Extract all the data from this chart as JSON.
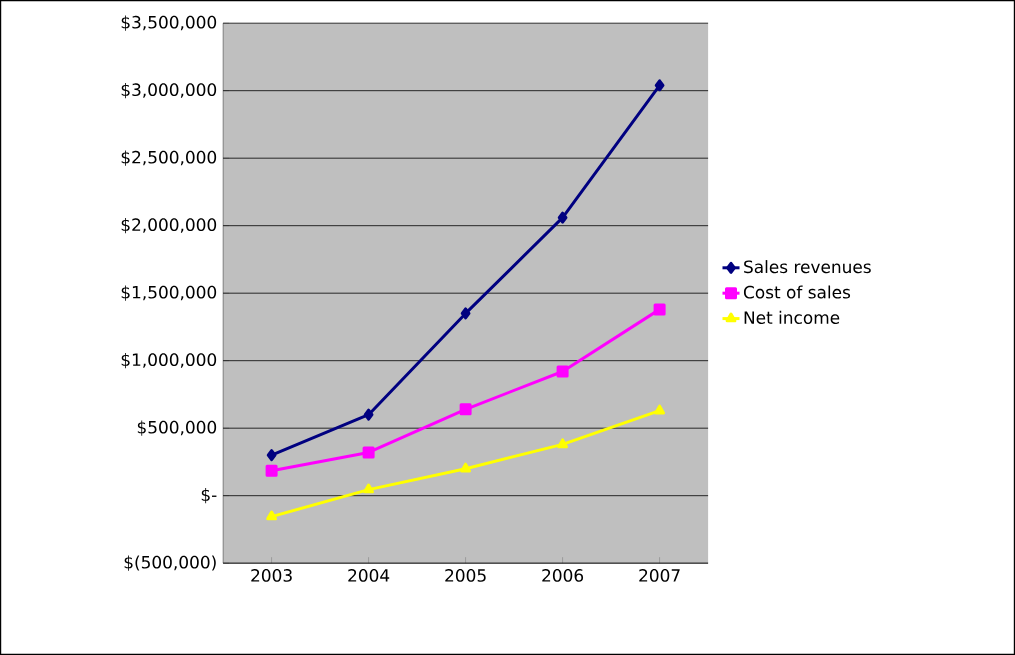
{
  "chart_data": {
    "type": "line",
    "categories": [
      "2003",
      "2004",
      "2005",
      "2006",
      "2007"
    ],
    "series": [
      {
        "name": "Sales revenues",
        "color": "#000080",
        "marker": "diamond",
        "values": [
          300000,
          600000,
          1350000,
          2060000,
          3040000
        ]
      },
      {
        "name": "Cost of sales",
        "color": "#ff00ff",
        "marker": "square",
        "values": [
          185000,
          320000,
          640000,
          920000,
          1380000
        ]
      },
      {
        "name": "Net income",
        "color": "#ffff00",
        "marker": "triangle",
        "values": [
          -155000,
          45000,
          200000,
          380000,
          630000
        ]
      }
    ],
    "ylim": [
      -500000,
      3500000
    ],
    "yticks": [
      {
        "value": -500000,
        "label": "$(500,000)"
      },
      {
        "value": 0,
        "label": "$-"
      },
      {
        "value": 500000,
        "label": "$500,000"
      },
      {
        "value": 1000000,
        "label": "$1,000,000"
      },
      {
        "value": 1500000,
        "label": "$1,500,000"
      },
      {
        "value": 2000000,
        "label": "$2,000,000"
      },
      {
        "value": 2500000,
        "label": "$2,500,000"
      },
      {
        "value": 3000000,
        "label": "$3,000,000"
      },
      {
        "value": 3500000,
        "label": "$3,500,000"
      }
    ],
    "grid": "y",
    "legend": "right",
    "line_style": "solid"
  }
}
